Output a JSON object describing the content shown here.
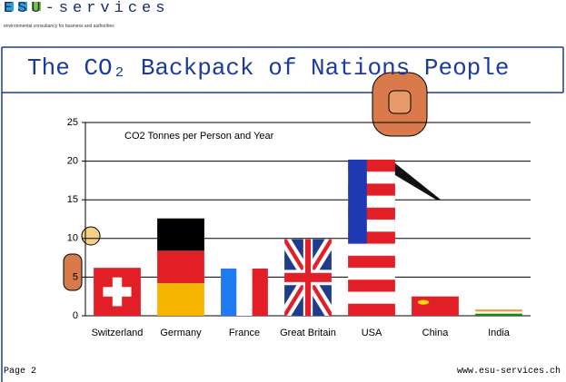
{
  "header": {
    "logo": "ESU-services",
    "tagline": "environmental consultancy for business and authorities"
  },
  "footer": {
    "page": "Page 2",
    "url": "www.esu-services.ch"
  },
  "chart_data": {
    "type": "bar",
    "title": "The CO₂ Backpack of Nations People",
    "annotation": "CO2 Tonnes per Person and Year",
    "categories": [
      "Switzerland",
      "Germany",
      "France",
      "Great Britain",
      "USA",
      "China",
      "India"
    ],
    "values": [
      6.2,
      12.6,
      6.1,
      9.9,
      20.2,
      2.5,
      0.8
    ],
    "ylim": [
      0,
      25
    ],
    "yticks": [
      0,
      5,
      10,
      15,
      20,
      25
    ],
    "grid": true
  }
}
